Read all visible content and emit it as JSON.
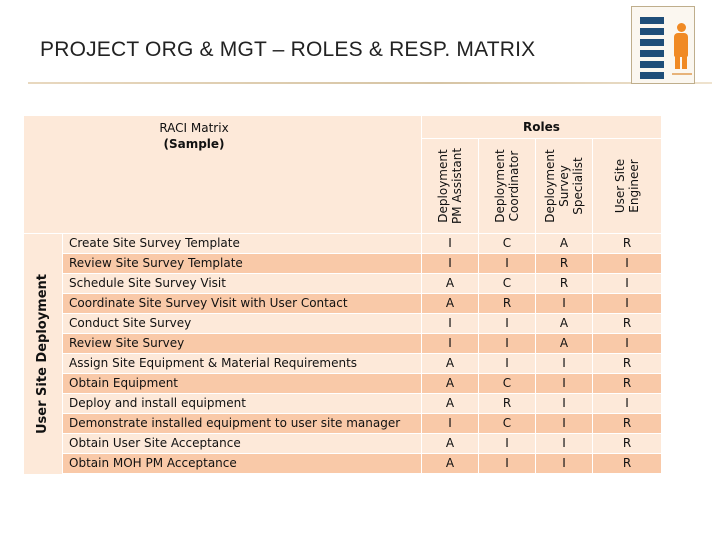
{
  "slide": {
    "title": "PROJECT ORG & MGT – ROLES & RESP. MATRIX"
  },
  "matrix": {
    "title_line1": "RACI Matrix",
    "title_line2": "(Sample)",
    "roles_header": "Roles",
    "roles": [
      "Deployment\nPM Assistant",
      "Deployment\nCoordinator",
      "Deployment\nSurvey\nSpecialist",
      "User Site\nEngineer"
    ],
    "group": "User Site Deployment",
    "rows": [
      {
        "task": "Create Site Survey Template",
        "values": [
          "I",
          "C",
          "A",
          "R"
        ]
      },
      {
        "task": "Review Site Survey Template",
        "values": [
          "I",
          "I",
          "R",
          "I"
        ]
      },
      {
        "task": "Schedule Site Survey Visit",
        "values": [
          "A",
          "C",
          "R",
          "I"
        ]
      },
      {
        "task": "Coordinate Site Survey Visit with User Contact",
        "values": [
          "A",
          "R",
          "I",
          "I"
        ]
      },
      {
        "task": "Conduct Site Survey",
        "values": [
          "I",
          "I",
          "A",
          "R"
        ]
      },
      {
        "task": "Review Site Survey",
        "values": [
          "I",
          "I",
          "A",
          "I"
        ]
      },
      {
        "task": "Assign Site Equipment & Material Requirements",
        "values": [
          "A",
          "I",
          "I",
          "R"
        ]
      },
      {
        "task": "Obtain Equipment",
        "values": [
          "A",
          "C",
          "I",
          "R"
        ]
      },
      {
        "task": "Deploy and install equipment",
        "values": [
          "A",
          "R",
          "I",
          "I"
        ]
      },
      {
        "task": "Demonstrate installed equipment to user site manager",
        "values": [
          "I",
          "C",
          "I",
          "R"
        ]
      },
      {
        "task": "Obtain User Site Acceptance",
        "values": [
          "A",
          "I",
          "I",
          "R"
        ]
      },
      {
        "task": "Obtain MOH PM Acceptance",
        "values": [
          "A",
          "I",
          "I",
          "R"
        ]
      }
    ]
  },
  "colors": {
    "light_peach": "#fde9d9",
    "dark_peach": "#f9c9a8",
    "thumbnail_accent": "#f08a24"
  }
}
